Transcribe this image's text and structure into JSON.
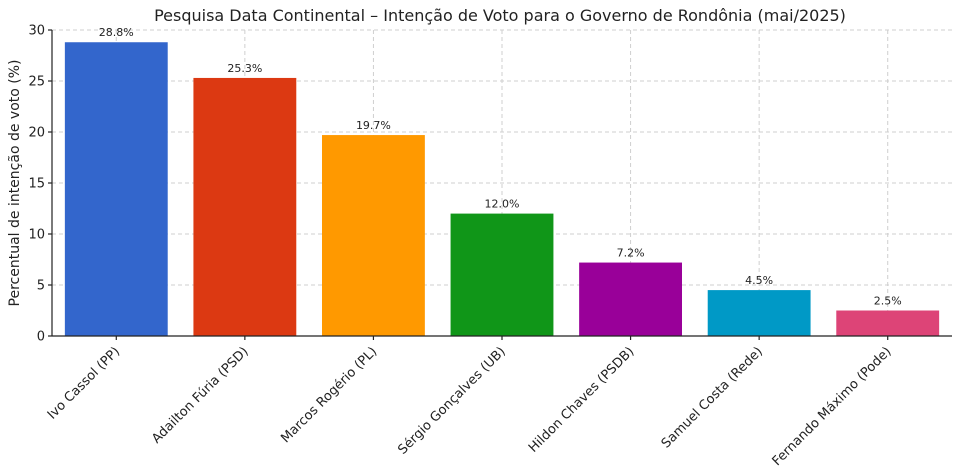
{
  "chart_data": {
    "type": "bar",
    "title": "Pesquisa Data Continental – Intenção de Voto para o Governo de Rondônia (mai/2025)",
    "xlabel": "",
    "ylabel": "Percentual de intenção de voto (%)",
    "ylim": [
      0,
      30
    ],
    "yticks": [
      0,
      5,
      10,
      15,
      20,
      25,
      30
    ],
    "grid": true,
    "categories": [
      "Ivo Cassol (PP)",
      "Adailton Fúria (PSD)",
      "Marcos Rogério (PL)",
      "Sérgio Gonçalves (UB)",
      "Hildon Chaves (PSDB)",
      "Samuel Costa (Rede)",
      "Fernando Máximo (Pode)"
    ],
    "values": [
      28.8,
      25.3,
      19.7,
      12.0,
      7.2,
      4.5,
      2.5
    ],
    "data_labels": [
      "28.8%",
      "25.3%",
      "19.7%",
      "12.0%",
      "7.2%",
      "4.5%",
      "2.5%"
    ],
    "colors": [
      "#3366cc",
      "#dc3912",
      "#ff9900",
      "#109618",
      "#990099",
      "#0099c6",
      "#dd4477"
    ]
  }
}
